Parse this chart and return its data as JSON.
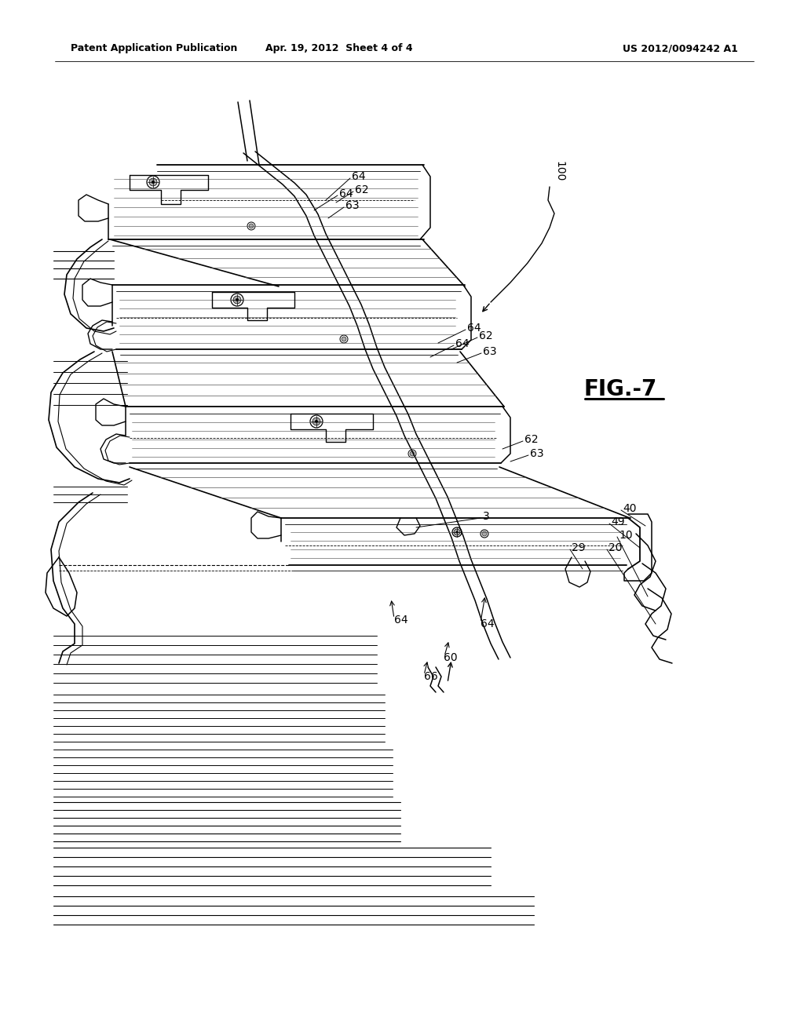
{
  "bg": "#ffffff",
  "header_left": "Patent Application Publication",
  "header_center": "Apr. 19, 2012  Sheet 4 of 4",
  "header_right": "US 2012/0094242 A1",
  "fig_label": "FIG.-7",
  "fig_w": 10.24,
  "fig_h": 13.2
}
